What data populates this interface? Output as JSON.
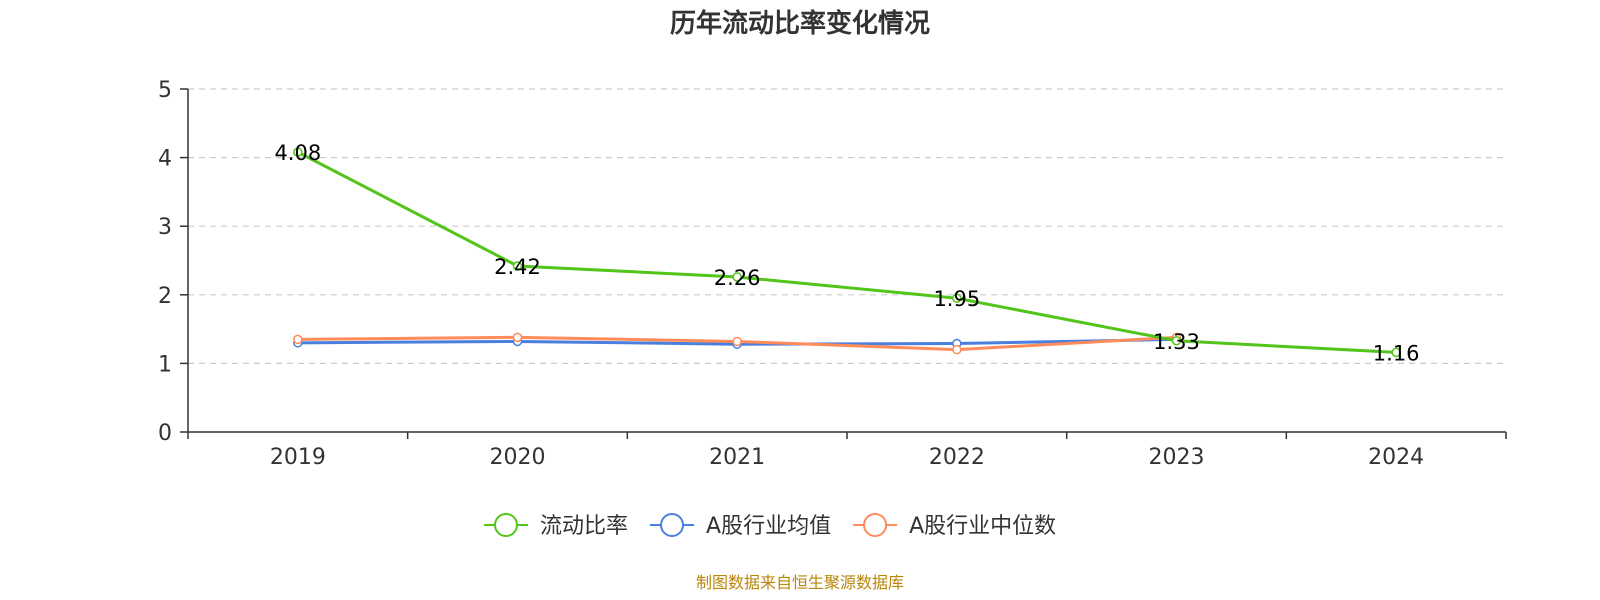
{
  "chart_data": {
    "type": "line",
    "title": "历年流动比率变化情况",
    "categories": [
      "2019",
      "2020",
      "2021",
      "2022",
      "2023",
      "2024"
    ],
    "ylim": [
      0,
      5
    ],
    "yticks": [
      0,
      1,
      2,
      3,
      4,
      5
    ],
    "grid": true,
    "legend_position": "bottom",
    "series": [
      {
        "name": "流动比率",
        "color": "#52c41a",
        "values": [
          4.08,
          2.42,
          2.26,
          1.95,
          1.33,
          1.16
        ],
        "labels": [
          "4.08",
          "2.42",
          "2.26",
          "1.95",
          "1.33",
          "1.16"
        ]
      },
      {
        "name": "A股行业均值",
        "color": "#4a7fe0",
        "values": [
          1.3,
          1.32,
          1.28,
          1.29,
          1.35,
          null
        ]
      },
      {
        "name": "A股行业中位数",
        "color": "#ff8c5a",
        "values": [
          1.35,
          1.38,
          1.32,
          1.2,
          1.38,
          null
        ]
      }
    ]
  },
  "source_text": "制图数据来自恒生聚源数据库"
}
